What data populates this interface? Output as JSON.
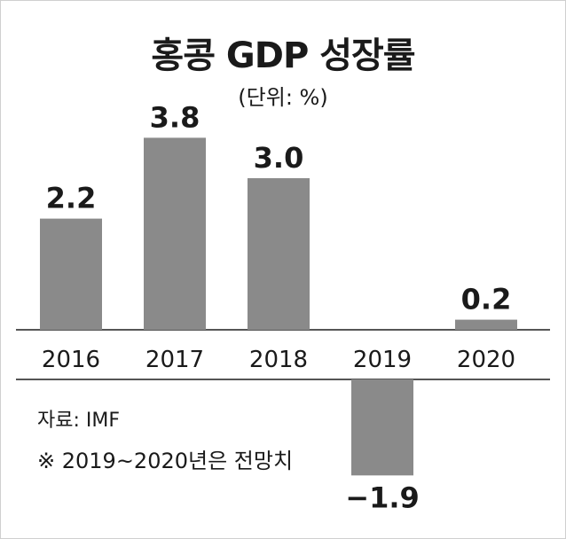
{
  "chart_data": {
    "type": "bar",
    "title": "홍콩 GDP 성장률",
    "subtitle": "(단위: %)",
    "categories": [
      "2016",
      "2017",
      "2018",
      "2019",
      "2020"
    ],
    "values": [
      2.2,
      3.8,
      3.0,
      -1.9,
      0.2
    ],
    "value_labels": [
      "2.2",
      "3.8",
      "3.0",
      "−1.9",
      "0.2"
    ],
    "xlabel": "",
    "ylabel": "",
    "ylim": [
      -2.5,
      4.5
    ],
    "grid": false,
    "bar_color": "#8a8a8a"
  },
  "footer": {
    "source": "자료: IMF",
    "note": "※  2019~2020년은 전망치"
  }
}
